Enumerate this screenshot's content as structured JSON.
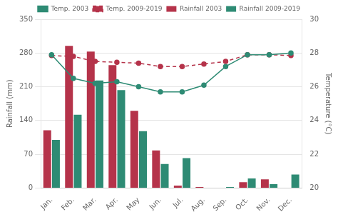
{
  "chart_data": {
    "type": "bar",
    "categories": [
      "Jan.",
      "Feb.",
      "Mar.",
      "Apr.",
      "May",
      "Jun.",
      "Jul.",
      "Aug.",
      "Sep.",
      "Oct.",
      "Nov.",
      "Dec."
    ],
    "series": [
      {
        "name": "Rainfall 2003",
        "type": "bar",
        "color": "#b5334a",
        "values": [
          120,
          295,
          283,
          255,
          160,
          78,
          5,
          2,
          0,
          12,
          18,
          0
        ]
      },
      {
        "name": "Rainfall 2009-2019",
        "type": "bar",
        "color": "#2e8b74",
        "values": [
          100,
          152,
          223,
          203,
          118,
          50,
          62,
          0,
          2,
          20,
          8,
          28
        ]
      },
      {
        "name": "Temp. 2003",
        "type": "line",
        "axis": "y2",
        "color": "#2e8b74",
        "marker": "circle",
        "line_style": "solid",
        "values": [
          27.9,
          26.5,
          26.2,
          26.3,
          26.0,
          25.7,
          25.7,
          26.1,
          27.2,
          27.9,
          27.9,
          28.0
        ]
      },
      {
        "name": "Temp. 2009-2019",
        "type": "line",
        "axis": "y2",
        "color": "#b5334a",
        "marker": "circle",
        "line_style": "dashed",
        "values": [
          27.85,
          27.8,
          27.5,
          27.45,
          27.4,
          27.2,
          27.2,
          27.35,
          27.5,
          27.9,
          27.9,
          27.85
        ]
      }
    ],
    "ylabel": "Rainfall (mm)",
    "y2label": "Temperature (°C)",
    "ylim": [
      0,
      350
    ],
    "yticks": [
      0,
      70,
      140,
      210,
      280,
      350
    ],
    "y2lim": [
      20,
      30
    ],
    "y2ticks": [
      20,
      22,
      24,
      26,
      28,
      30
    ],
    "grid": true,
    "legend": "upper center"
  }
}
